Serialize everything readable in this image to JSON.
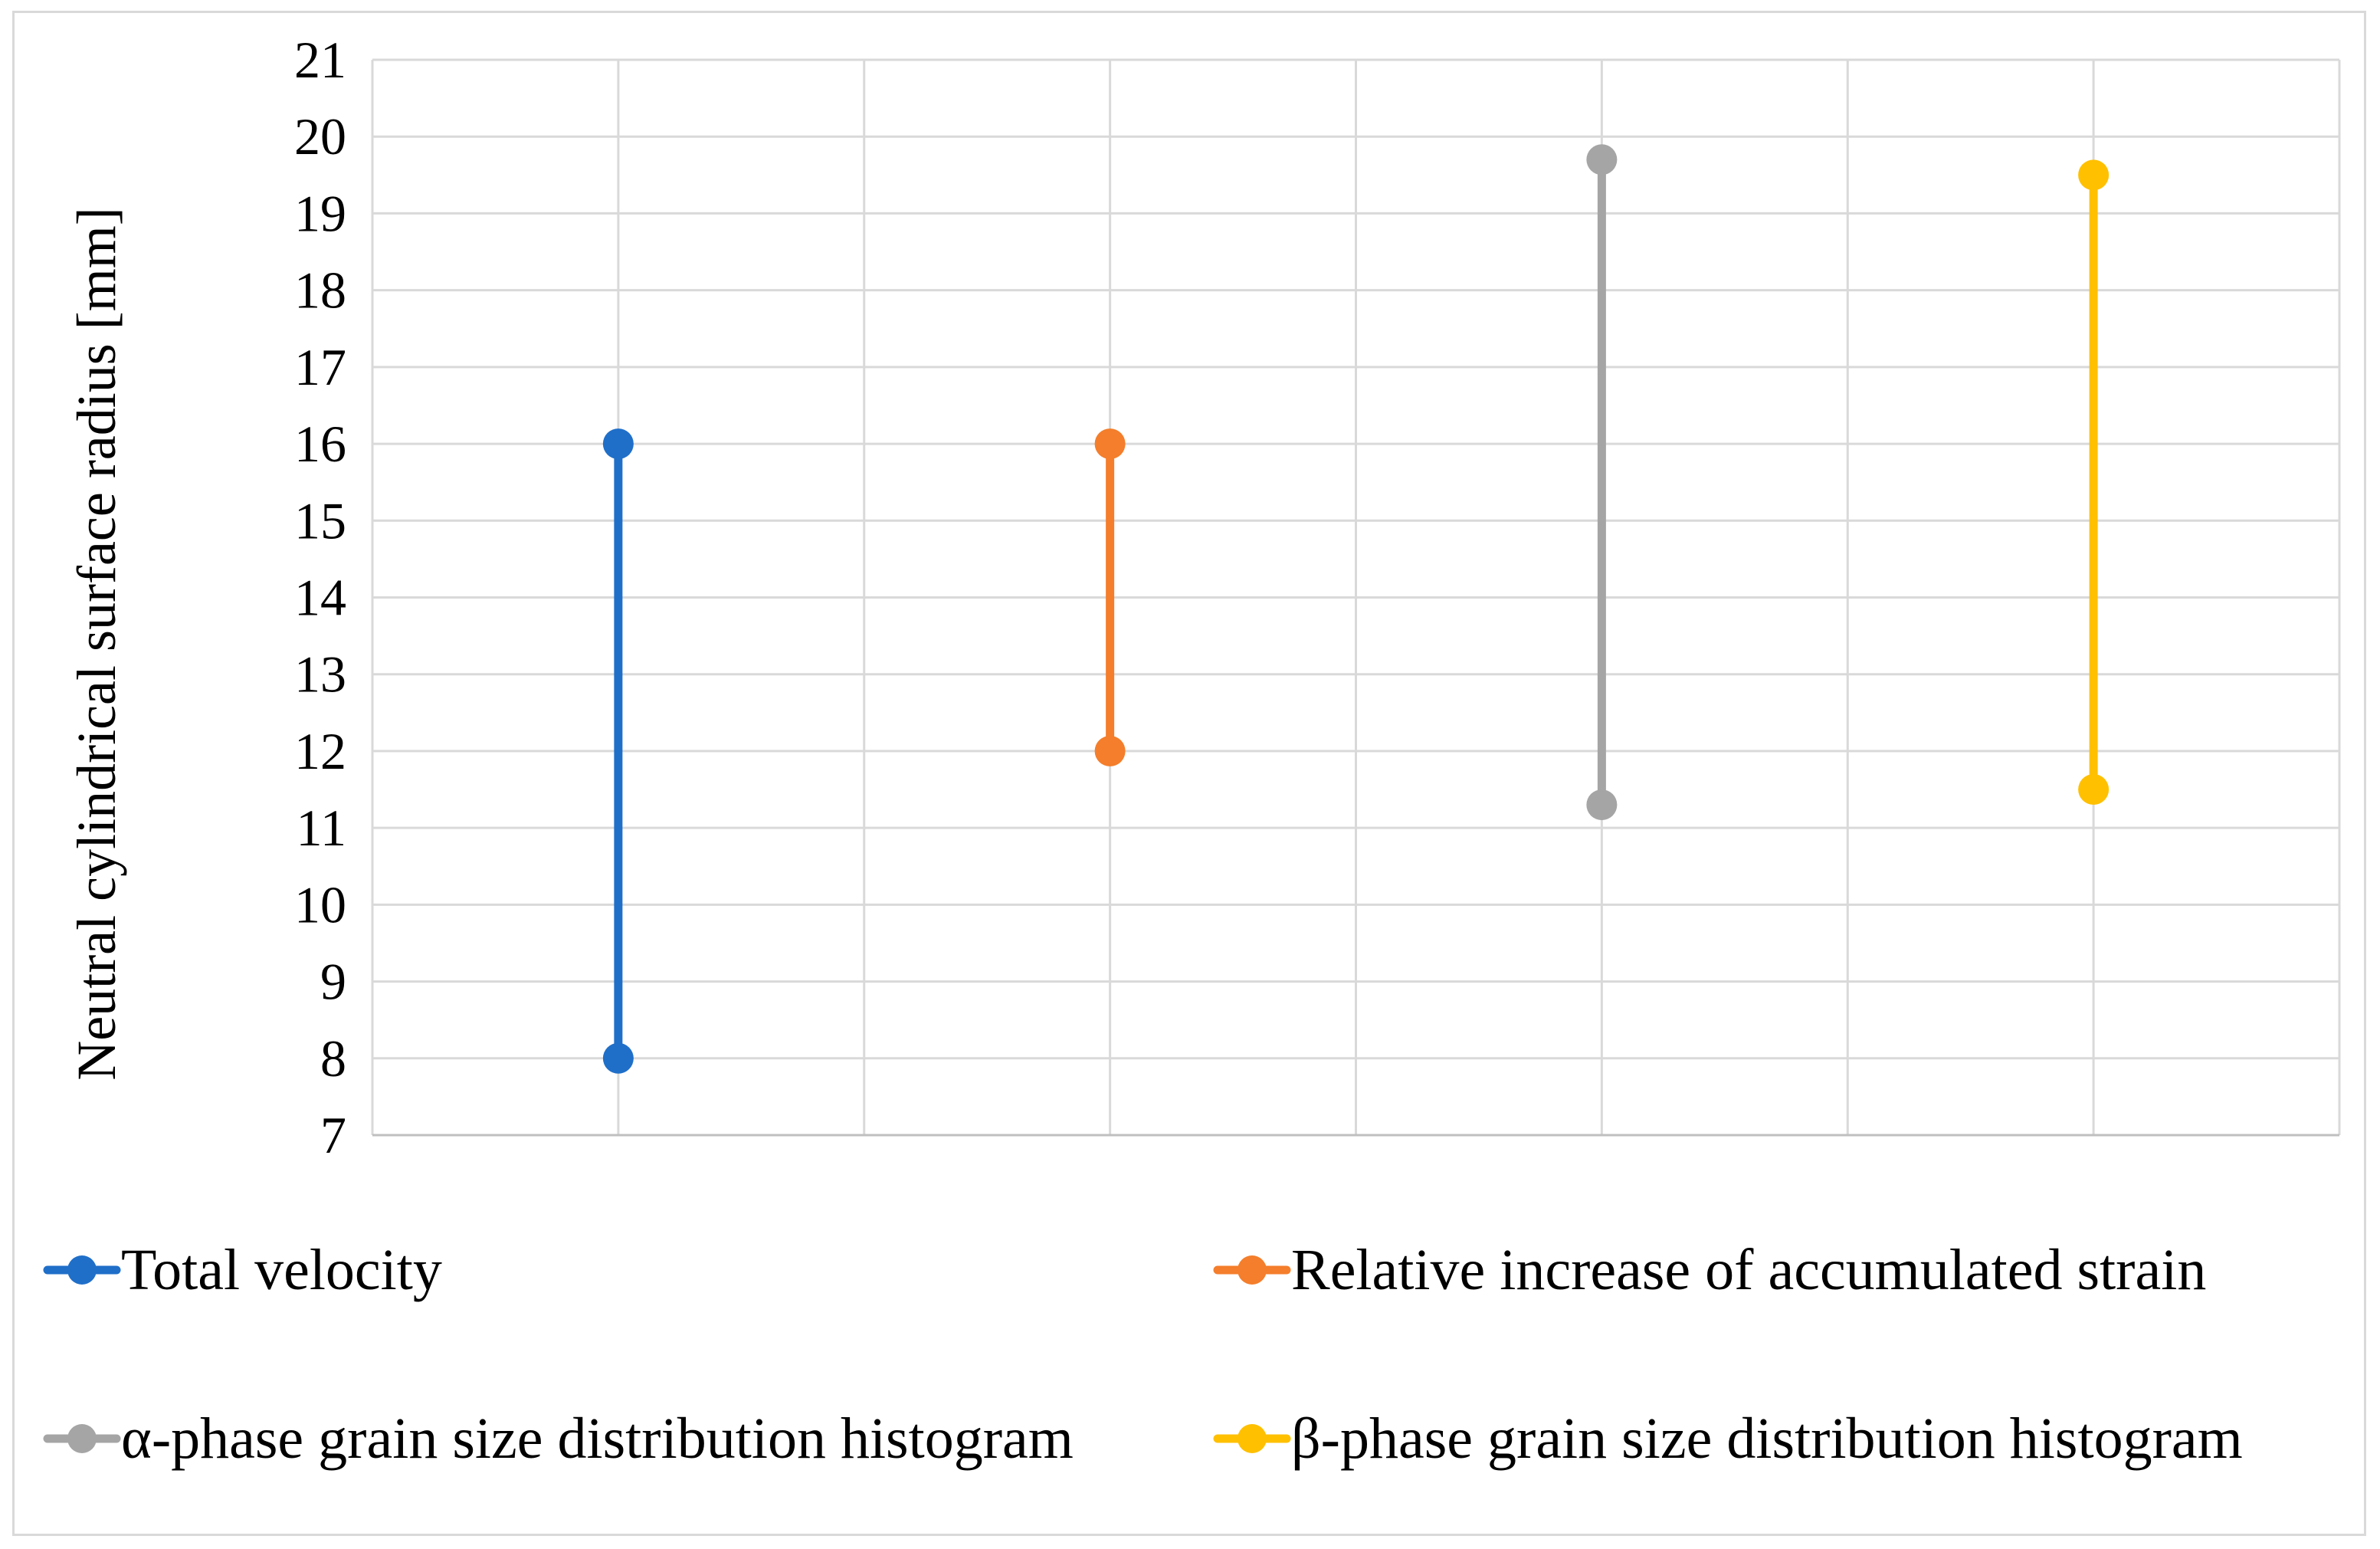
{
  "chart_data": {
    "type": "line",
    "title": "",
    "xlabel": "",
    "ylabel": "Neutral cylindrical surface radius [mm]",
    "ylim": [
      7,
      21
    ],
    "yticks": [
      7,
      8,
      9,
      10,
      11,
      12,
      13,
      14,
      15,
      16,
      17,
      18,
      19,
      20,
      21
    ],
    "grid": true,
    "legend_position": "bottom",
    "series": [
      {
        "name": "Total velocity",
        "color": "#1f6fc9",
        "x": 1,
        "values": [
          8,
          16
        ]
      },
      {
        "name": "Relative increase of accumulated strain",
        "color": "#f47e2b",
        "x": 3,
        "values": [
          12,
          16
        ]
      },
      {
        "name": "α-phase grain size distribution histogram",
        "color": "#a5a5a5",
        "x": 5,
        "values": [
          11.3,
          19.7
        ]
      },
      {
        "name": "β-phase grain size distribution histogram",
        "color": "#ffc000",
        "x": 7,
        "values": [
          11.5,
          19.5
        ]
      }
    ]
  }
}
